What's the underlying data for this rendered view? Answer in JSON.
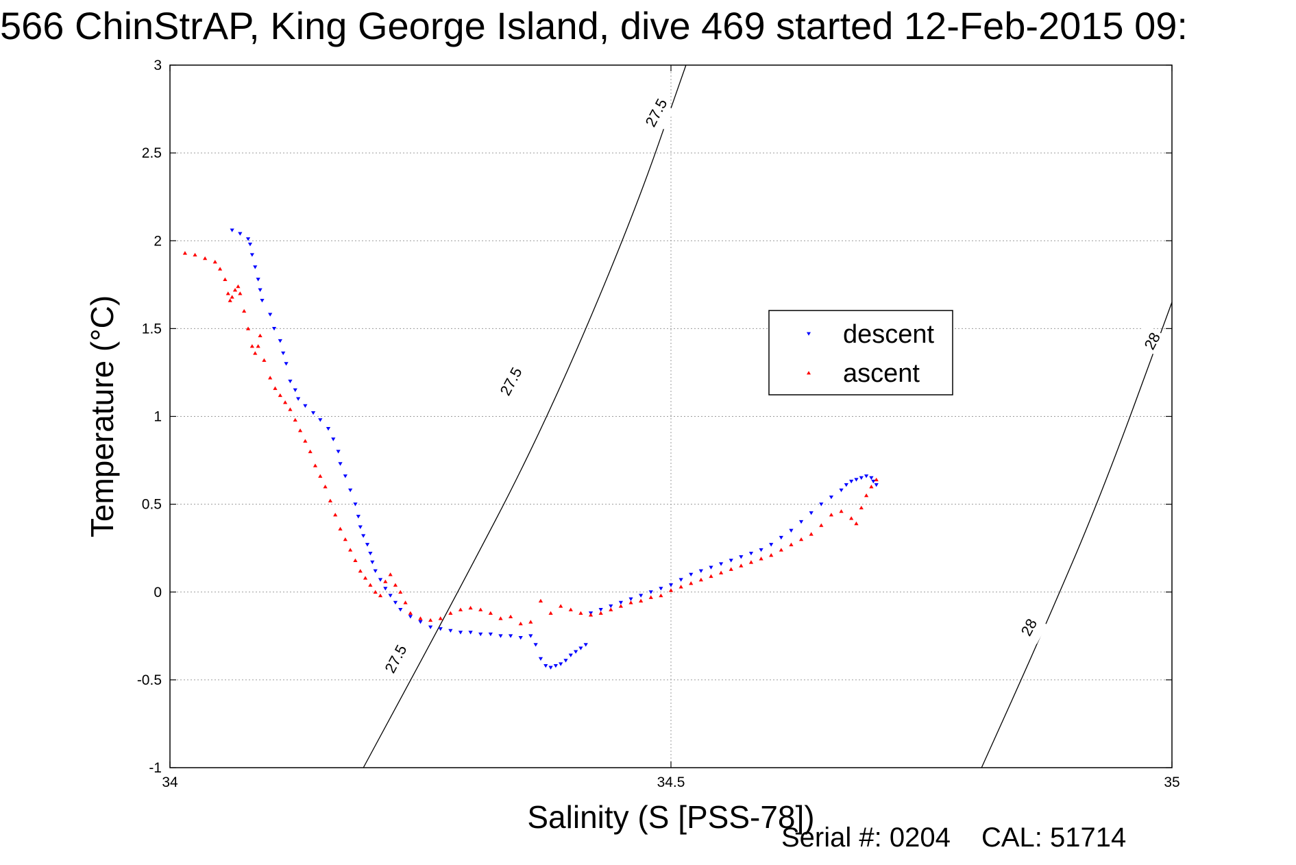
{
  "title": "566 ChinStrAP, King George Island, dive 469 started 12-Feb-2015 09:",
  "footer": {
    "serial": "Serial #: 0204",
    "cal": "CAL: 51714"
  },
  "chart_data": {
    "type": "scatter",
    "title": "566 ChinStrAP, King George Island, dive 469 started 12-Feb-2015 09:",
    "xlabel": "Salinity (S [PSS-78])",
    "ylabel": "Temperature (°C)",
    "xlim": [
      34,
      35
    ],
    "ylim": [
      -1,
      3
    ],
    "xticks": [
      34,
      34.5,
      35
    ],
    "xtick_labels": [
      "34",
      "34.5",
      "35"
    ],
    "yticks": [
      -1,
      -0.5,
      0,
      0.5,
      1,
      1.5,
      2,
      2.5,
      3
    ],
    "ytick_labels": [
      "-1",
      "-0.5",
      "0",
      "0.5",
      "1",
      "1.5",
      "2",
      "2.5",
      "3"
    ],
    "grid": true,
    "legend_position": "upper-right-center",
    "colors": {
      "descent": "#0000ff",
      "ascent": "#ff0000",
      "contour": "#000000",
      "grid": "#9a9a9a"
    },
    "series": [
      {
        "name": "descent",
        "marker": "triangle-down",
        "color": "#0000ff",
        "x": [
          34.062,
          34.07,
          34.078,
          34.08,
          34.082,
          34.085,
          34.088,
          34.09,
          34.092,
          34.1,
          34.104,
          34.11,
          34.113,
          34.116,
          34.12,
          34.125,
          34.128,
          34.135,
          34.143,
          34.15,
          34.158,
          34.163,
          34.168,
          34.17,
          34.175,
          34.18,
          34.185,
          34.188,
          34.19,
          34.193,
          34.197,
          34.2,
          34.202,
          34.205,
          34.21,
          34.215,
          34.22,
          34.225,
          34.23,
          34.24,
          34.25,
          34.26,
          34.27,
          34.28,
          34.29,
          34.3,
          34.31,
          34.32,
          34.33,
          34.34,
          34.35,
          34.36,
          34.365,
          34.37,
          34.375,
          34.38,
          34.385,
          34.39,
          34.395,
          34.4,
          34.405,
          34.41,
          34.415,
          34.42,
          34.43,
          34.44,
          34.45,
          34.46,
          34.47,
          34.48,
          34.49,
          34.5,
          34.51,
          34.52,
          34.53,
          34.54,
          34.55,
          34.56,
          34.57,
          34.58,
          34.59,
          34.6,
          34.61,
          34.62,
          34.63,
          34.64,
          34.65,
          34.66,
          34.67,
          34.675,
          34.68,
          34.685,
          34.69,
          34.695,
          34.7,
          34.702,
          34.705
        ],
        "y": [
          2.06,
          2.04,
          2.01,
          1.98,
          1.92,
          1.85,
          1.78,
          1.72,
          1.66,
          1.58,
          1.5,
          1.43,
          1.36,
          1.3,
          1.2,
          1.15,
          1.1,
          1.06,
          1.02,
          0.98,
          0.93,
          0.87,
          0.8,
          0.73,
          0.66,
          0.58,
          0.5,
          0.43,
          0.37,
          0.32,
          0.27,
          0.22,
          0.17,
          0.12,
          0.07,
          0.02,
          -0.02,
          -0.06,
          -0.1,
          -0.14,
          -0.17,
          -0.2,
          -0.21,
          -0.22,
          -0.23,
          -0.23,
          -0.24,
          -0.24,
          -0.25,
          -0.25,
          -0.26,
          -0.25,
          -0.3,
          -0.38,
          -0.42,
          -0.43,
          -0.42,
          -0.41,
          -0.39,
          -0.36,
          -0.34,
          -0.32,
          -0.3,
          -0.12,
          -0.1,
          -0.08,
          -0.06,
          -0.04,
          -0.02,
          0.0,
          0.02,
          0.04,
          0.07,
          0.1,
          0.12,
          0.14,
          0.16,
          0.18,
          0.2,
          0.22,
          0.24,
          0.27,
          0.31,
          0.35,
          0.4,
          0.45,
          0.5,
          0.54,
          0.58,
          0.61,
          0.63,
          0.64,
          0.65,
          0.66,
          0.65,
          0.63,
          0.61
        ]
      },
      {
        "name": "ascent",
        "marker": "triangle-up",
        "color": "#ff0000",
        "x": [
          34.015,
          34.025,
          34.035,
          34.045,
          34.05,
          34.055,
          34.058,
          34.06,
          34.062,
          34.065,
          34.068,
          34.07,
          34.074,
          34.078,
          34.082,
          34.085,
          34.088,
          34.09,
          34.094,
          34.1,
          34.105,
          34.11,
          34.115,
          34.12,
          34.125,
          34.13,
          34.135,
          34.14,
          34.145,
          34.15,
          34.155,
          34.16,
          34.165,
          34.17,
          34.175,
          34.18,
          34.185,
          34.19,
          34.195,
          34.2,
          34.205,
          34.21,
          34.215,
          34.22,
          34.225,
          34.23,
          34.235,
          34.24,
          34.25,
          34.26,
          34.27,
          34.28,
          34.29,
          34.3,
          34.31,
          34.32,
          34.33,
          34.34,
          34.35,
          34.36,
          34.37,
          34.38,
          34.39,
          34.4,
          34.41,
          34.42,
          34.43,
          34.44,
          34.45,
          34.46,
          34.47,
          34.48,
          34.49,
          34.5,
          34.51,
          34.52,
          34.53,
          34.54,
          34.55,
          34.56,
          34.57,
          34.58,
          34.59,
          34.6,
          34.61,
          34.62,
          34.63,
          34.64,
          34.65,
          34.66,
          34.67,
          34.68,
          34.685,
          34.69,
          34.695,
          34.7,
          34.705
        ],
        "y": [
          1.93,
          1.92,
          1.9,
          1.88,
          1.84,
          1.78,
          1.7,
          1.66,
          1.68,
          1.72,
          1.74,
          1.7,
          1.6,
          1.5,
          1.4,
          1.36,
          1.4,
          1.46,
          1.32,
          1.22,
          1.16,
          1.12,
          1.08,
          1.04,
          0.98,
          0.92,
          0.86,
          0.8,
          0.72,
          0.66,
          0.6,
          0.52,
          0.44,
          0.36,
          0.3,
          0.24,
          0.18,
          0.12,
          0.08,
          0.04,
          0.0,
          -0.02,
          0.06,
          0.1,
          0.04,
          0.0,
          -0.06,
          -0.12,
          -0.15,
          -0.16,
          -0.15,
          -0.12,
          -0.1,
          -0.09,
          -0.1,
          -0.12,
          -0.15,
          -0.14,
          -0.18,
          -0.17,
          -0.05,
          -0.12,
          -0.08,
          -0.1,
          -0.12,
          -0.13,
          -0.12,
          -0.1,
          -0.08,
          -0.06,
          -0.05,
          -0.03,
          -0.02,
          0.01,
          0.03,
          0.05,
          0.07,
          0.09,
          0.11,
          0.13,
          0.15,
          0.17,
          0.19,
          0.21,
          0.24,
          0.27,
          0.3,
          0.33,
          0.38,
          0.44,
          0.46,
          0.42,
          0.39,
          0.48,
          0.55,
          0.6,
          0.64
        ]
      }
    ],
    "contours": [
      {
        "label": "27.5",
        "x": [
          34.193,
          34.28,
          34.37,
          34.46,
          34.515
        ],
        "y": [
          -1,
          -0.08,
          0.9,
          2.1,
          3
        ]
      },
      {
        "label": "28",
        "x": [
          34.81,
          34.87,
          34.93,
          35.0
        ],
        "y": [
          -1,
          -0.24,
          0.56,
          1.65
        ]
      }
    ],
    "contour_label_positions": [
      {
        "label": "27.5",
        "x": 34.225,
        "y": -0.38
      },
      {
        "label": "27.5",
        "x": 34.34,
        "y": 1.2
      },
      {
        "label": "27.5",
        "x": 34.485,
        "y": 2.73
      },
      {
        "label": "28",
        "x": 34.857,
        "y": -0.2
      },
      {
        "label": "28",
        "x": 34.98,
        "y": 1.43
      }
    ]
  }
}
